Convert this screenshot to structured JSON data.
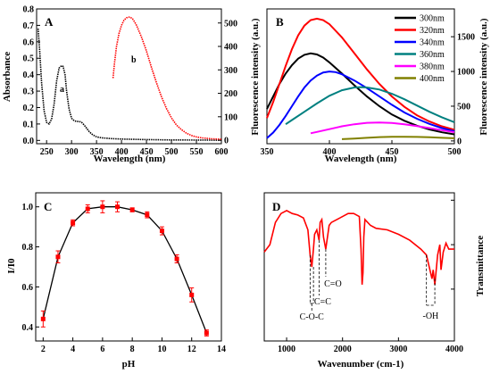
{
  "chart_data": [
    {
      "panel": "A",
      "type": "line",
      "xlabel": "Wavelength (nm)",
      "ylabel": "Absorbance",
      "y2label": "Fluorescence intensity (a.u.)",
      "xlim": [
        230,
        600
      ],
      "ylim": [
        -0.02,
        0.8
      ],
      "y2lim": [
        -15,
        560
      ],
      "xticks": [
        "250",
        "300",
        "350",
        "400",
        "450",
        "500",
        "550",
        "600"
      ],
      "yticks": [
        "0.0",
        "0.1",
        "0.2",
        "0.3",
        "0.4",
        "0.5",
        "0.6",
        "0.7",
        "0.8"
      ],
      "y2ticks": [
        "0",
        "100",
        "200",
        "300",
        "400",
        "500"
      ],
      "series": [
        {
          "label": "a",
          "axis": "left",
          "color": "#000000",
          "x": [
            233,
            236,
            240,
            245,
            250,
            255,
            260,
            265,
            270,
            275,
            280,
            283,
            287,
            290,
            295,
            300,
            305,
            310,
            315,
            320,
            325,
            330,
            335,
            340,
            345,
            350,
            360,
            380,
            400,
            450,
            500,
            550,
            600
          ],
          "y": [
            0.68,
            0.55,
            0.35,
            0.18,
            0.11,
            0.1,
            0.13,
            0.22,
            0.36,
            0.44,
            0.455,
            0.45,
            0.4,
            0.3,
            0.19,
            0.135,
            0.12,
            0.115,
            0.115,
            0.11,
            0.095,
            0.075,
            0.055,
            0.04,
            0.03,
            0.022,
            0.016,
            0.011,
            0.008,
            0.005,
            0.003,
            0.002,
            0.001
          ]
        },
        {
          "label": "b",
          "axis": "right",
          "color": "#ff0000",
          "x": [
            383,
            386,
            390,
            395,
            400,
            405,
            410,
            415,
            418,
            422,
            426,
            430,
            435,
            440,
            450,
            460,
            470,
            480,
            490,
            500,
            510,
            520,
            530,
            540,
            550,
            560,
            580,
            600
          ],
          "y": [
            265,
            330,
            400,
            455,
            490,
            512,
            522,
            525,
            524,
            518,
            505,
            490,
            465,
            440,
            380,
            310,
            245,
            185,
            135,
            95,
            65,
            45,
            30,
            20,
            14,
            10,
            6,
            4
          ]
        }
      ]
    },
    {
      "panel": "B",
      "type": "line",
      "xlabel": "Wavelength (nm)",
      "ylabel": "Fluorescence intensity (a.u.)",
      "xlim": [
        350,
        500
      ],
      "ylim": [
        -40,
        1900
      ],
      "xticks": [
        "350",
        "400",
        "450",
        "500"
      ],
      "yticks": [
        "0",
        "500",
        "1000",
        "1500"
      ],
      "series": [
        {
          "name": "300nm",
          "color": "#000000",
          "x": [
            350,
            355,
            360,
            365,
            370,
            375,
            380,
            385,
            390,
            395,
            400,
            410,
            420,
            430,
            440,
            450,
            460,
            470,
            480,
            490,
            500
          ],
          "y": [
            460,
            640,
            820,
            970,
            1090,
            1185,
            1240,
            1260,
            1245,
            1200,
            1130,
            970,
            800,
            640,
            500,
            380,
            290,
            220,
            165,
            125,
            95
          ]
        },
        {
          "name": "320nm",
          "color": "#ff0000",
          "x": [
            350,
            355,
            360,
            365,
            370,
            375,
            380,
            385,
            390,
            395,
            400,
            410,
            420,
            430,
            440,
            450,
            460,
            470,
            480,
            490,
            500
          ],
          "y": [
            330,
            560,
            820,
            1080,
            1320,
            1520,
            1660,
            1740,
            1760,
            1740,
            1680,
            1490,
            1260,
            1030,
            820,
            640,
            490,
            370,
            280,
            210,
            160
          ]
        },
        {
          "name": "340nm",
          "color": "#0000ff",
          "x": [
            350,
            355,
            360,
            365,
            370,
            375,
            380,
            385,
            390,
            395,
            400,
            405,
            410,
            420,
            430,
            440,
            450,
            460,
            470,
            480,
            490,
            500
          ],
          "y": [
            40,
            120,
            230,
            360,
            500,
            640,
            770,
            870,
            940,
            985,
            1000,
            990,
            960,
            870,
            760,
            640,
            520,
            410,
            320,
            245,
            185,
            140
          ]
        },
        {
          "name": "360nm",
          "color": "#008080",
          "x": [
            365,
            370,
            380,
            390,
            400,
            410,
            420,
            425,
            430,
            440,
            450,
            460,
            470,
            480,
            490,
            500
          ],
          "y": [
            240,
            300,
            420,
            540,
            650,
            730,
            770,
            775,
            770,
            740,
            680,
            600,
            510,
            420,
            340,
            270
          ]
        },
        {
          "name": "380nm",
          "color": "#ff00ff",
          "x": [
            385,
            390,
            400,
            410,
            420,
            430,
            440,
            450,
            460,
            470,
            480,
            490,
            500
          ],
          "y": [
            110,
            130,
            170,
            210,
            240,
            260,
            265,
            258,
            240,
            215,
            185,
            155,
            125
          ]
        },
        {
          "name": "400nm",
          "color": "#808000",
          "x": [
            410,
            420,
            430,
            440,
            450,
            460,
            470,
            480,
            490,
            500
          ],
          "y": [
            25,
            35,
            45,
            55,
            60,
            60,
            57,
            52,
            45,
            38
          ]
        }
      ]
    },
    {
      "panel": "C",
      "type": "line",
      "xlabel": "pH",
      "ylabel": "I/I0",
      "xlim": [
        1.5,
        14
      ],
      "ylim": [
        0.33,
        1.07
      ],
      "xticks": [
        "2",
        "4",
        "6",
        "8",
        "10",
        "12",
        "14"
      ],
      "yticks": [
        "0.4",
        "0.6",
        "0.8",
        "1.0"
      ],
      "x": [
        2,
        3,
        4,
        5,
        6,
        7,
        8,
        9,
        10,
        11,
        12,
        13
      ],
      "y": [
        0.44,
        0.75,
        0.92,
        0.99,
        1.0,
        1.0,
        0.985,
        0.96,
        0.88,
        0.74,
        0.56,
        0.37
      ],
      "err": [
        0.04,
        0.03,
        0.015,
        0.02,
        0.03,
        0.025,
        0.01,
        0.015,
        0.02,
        0.02,
        0.035,
        0.015
      ],
      "marker_color": "#ff0000"
    },
    {
      "panel": "D",
      "type": "line",
      "xlabel": "Wavenumber (cm-1)",
      "ylabel": "Transmittance",
      "xlim": [
        600,
        4000
      ],
      "xticks": [
        "1000",
        "2000",
        "3000",
        "4000"
      ],
      "ylim": [
        0,
        1
      ],
      "color": "#ff0000",
      "x": [
        600,
        700,
        800,
        900,
        1000,
        1100,
        1200,
        1300,
        1380,
        1420,
        1450,
        1480,
        1500,
        1540,
        1580,
        1600,
        1630,
        1660,
        1700,
        1730,
        1760,
        1800,
        1900,
        2000,
        2100,
        2200,
        2300,
        2330,
        2350,
        2365,
        2380,
        2400,
        2500,
        2600,
        2800,
        3000,
        3200,
        3400,
        3500,
        3550,
        3600,
        3620,
        3650,
        3700,
        3740,
        3760,
        3800,
        3850,
        3900,
        4000
      ],
      "y": [
        0.6,
        0.65,
        0.8,
        0.86,
        0.88,
        0.86,
        0.85,
        0.83,
        0.75,
        0.58,
        0.5,
        0.62,
        0.72,
        0.75,
        0.68,
        0.8,
        0.82,
        0.7,
        0.62,
        0.7,
        0.78,
        0.8,
        0.82,
        0.84,
        0.86,
        0.86,
        0.84,
        0.62,
        0.38,
        0.46,
        0.7,
        0.82,
        0.78,
        0.76,
        0.75,
        0.72,
        0.68,
        0.62,
        0.58,
        0.5,
        0.42,
        0.48,
        0.38,
        0.58,
        0.65,
        0.48,
        0.6,
        0.66,
        0.62,
        0.62
      ],
      "annotations": [
        "C-O-C",
        "C=C",
        "C=O",
        "-OH"
      ]
    }
  ]
}
